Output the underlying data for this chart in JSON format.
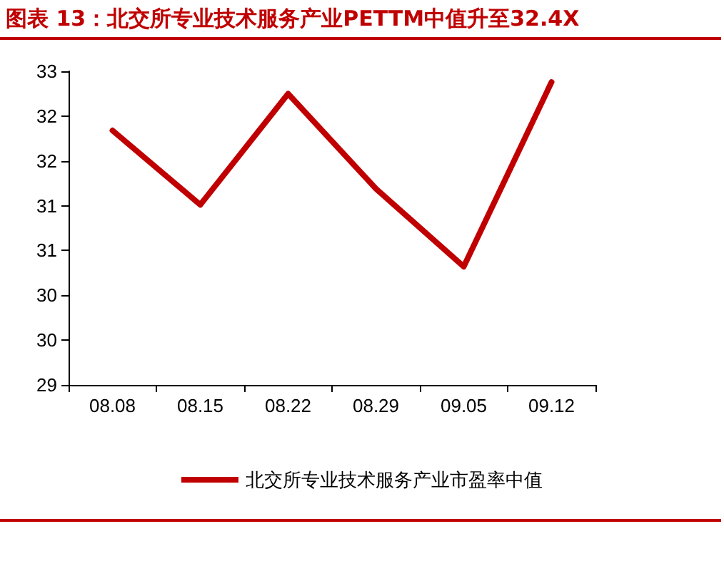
{
  "chart_data": {
    "type": "line",
    "title": "图表 13：北交所专业技术服务产业PETTM中值升至32.4X",
    "categories": [
      "08.08",
      "08.15",
      "08.22",
      "08.29",
      "09.05",
      "09.12"
    ],
    "series": [
      {
        "name": "北交所专业技术服务产业市盈率中值",
        "color": "#c00000",
        "values": [
          31.84,
          31.01,
          32.25,
          31.19,
          30.32,
          32.38
        ]
      }
    ],
    "ylim": [
      29,
      32.5
    ],
    "yticks": [
      29,
      {
        "value": 29.5,
        "label": "30"
      },
      {
        "value": 30,
        "label": "30"
      },
      {
        "value": 30.5,
        "label": "31"
      },
      {
        "value": 31,
        "label": "31"
      },
      {
        "value": 31.5,
        "label": "32"
      },
      {
        "value": 32,
        "label": "32"
      },
      {
        "value": 32.5,
        "label": "33"
      }
    ],
    "grid": false,
    "legend": "bottom",
    "marker": "none",
    "line_style": "solid"
  }
}
